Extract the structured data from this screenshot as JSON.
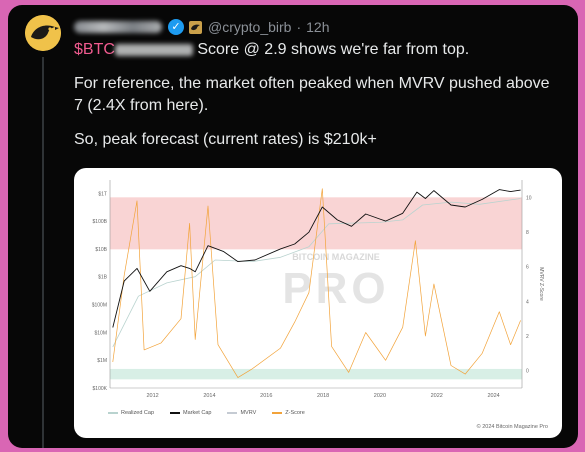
{
  "post": {
    "handle": "@crypto_birb",
    "separator": "·",
    "time": "12h",
    "cashtag": "$BTC",
    "line1_suffix": "Score @ 2.9 shows we're far from top.",
    "paragraph2": "For reference, the market often peaked when MVRV pushed above 7 (2.4X from here).",
    "paragraph3": "So, peak forecast (current rates) is $210k+"
  },
  "colors": {
    "page_bg": "#d966b4",
    "card_bg": "#070707",
    "cashtag": "#f05b8f",
    "verified": "#1d9bf0",
    "realized_cap": "#b9d3cf",
    "market_cap": "#111111",
    "mvrv": "#c5cbd3",
    "zscore": "#f2a33a",
    "red_band": "#f9d4d4",
    "green_band": "#d8efe6"
  },
  "chart_data": {
    "type": "line",
    "watermark": "BITCOIN MAGAZINE PRO",
    "x_ticks": [
      "2012",
      "2014",
      "2016",
      "2018",
      "2020",
      "2022",
      "2024"
    ],
    "y_left_ticks": [
      "$1T",
      "$100B",
      "$10B",
      "$1B",
      "$100M",
      "$10M",
      "$1M",
      "$100K"
    ],
    "y_right_label": "MVRV Z-Score",
    "y_right_ticks": [
      "10",
      "8",
      "6",
      "4",
      "2",
      "0"
    ],
    "legend": [
      {
        "name": "Realized Cap",
        "color": "#b9d3cf"
      },
      {
        "name": "Market Cap",
        "color": "#111111"
      },
      {
        "name": "MVRV",
        "color": "#c5cbd3"
      },
      {
        "name": "Z-Score",
        "color": "#f2a33a"
      }
    ],
    "credit": "© 2024 Bitcoin Magazine Pro",
    "series": [
      {
        "name": "Market Cap",
        "x": [
          2010.6,
          2011.0,
          2011.45,
          2011.9,
          2012.5,
          2013.0,
          2013.3,
          2013.5,
          2013.95,
          2014.5,
          2015.0,
          2015.6,
          2016.5,
          2017.0,
          2017.5,
          2017.97,
          2018.5,
          2019.0,
          2019.5,
          2020.2,
          2020.8,
          2021.3,
          2021.6,
          2021.9,
          2022.5,
          2023.0,
          2023.6,
          2024.2,
          2024.6,
          2024.95
        ],
        "y": [
          0.015,
          0.7,
          2.0,
          0.3,
          1.5,
          2.5,
          2.0,
          1.5,
          13,
          8,
          3.5,
          4,
          10,
          15,
          40,
          320,
          110,
          65,
          180,
          100,
          190,
          1100,
          650,
          1250,
          380,
          320,
          600,
          1350,
          1150,
          1300
        ]
      },
      {
        "name": "Realized Cap",
        "x": [
          2010.6,
          2011.5,
          2012.5,
          2013.5,
          2014.2,
          2015.5,
          2016.5,
          2017.5,
          2018.2,
          2019.0,
          2020.0,
          2020.8,
          2021.5,
          2022.5,
          2023.5,
          2024.95
        ],
        "y": [
          0.003,
          0.2,
          0.6,
          1.0,
          4,
          3.5,
          5,
          12,
          80,
          85,
          90,
          110,
          380,
          480,
          400,
          650
        ]
      },
      {
        "name": "Z-Score",
        "x": [
          2010.6,
          2011.0,
          2011.45,
          2011.7,
          2012.3,
          2013.0,
          2013.3,
          2013.5,
          2013.95,
          2014.3,
          2015.0,
          2015.5,
          2016.5,
          2017.0,
          2017.5,
          2017.97,
          2018.3,
          2018.9,
          2019.5,
          2020.2,
          2020.8,
          2021.25,
          2021.6,
          2021.9,
          2022.5,
          2023.0,
          2023.6,
          2024.2,
          2024.6,
          2024.95
        ],
        "y": [
          0.5,
          5.5,
          9.8,
          1.2,
          1.6,
          3.0,
          8.5,
          1.8,
          9.5,
          1.5,
          -0.4,
          0.1,
          1.3,
          2.8,
          4.5,
          10.5,
          1.4,
          -0.1,
          2.2,
          0.6,
          2.5,
          7.5,
          2.0,
          5.0,
          0.3,
          -0.2,
          1.0,
          3.4,
          1.5,
          2.9
        ]
      }
    ]
  }
}
